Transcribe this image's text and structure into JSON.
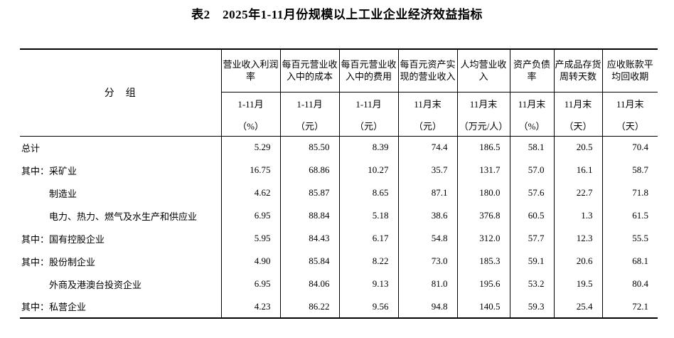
{
  "title": "表2　2025年1-11月份规模以上工业企业经济效益指标",
  "colors": {
    "text": "#000000",
    "background": "#ffffff",
    "border": "#000000"
  },
  "table": {
    "group_header": "分　组",
    "columns": [
      {
        "name": "营业收入利润率",
        "period": "1-11月",
        "unit": "（%）"
      },
      {
        "name": "每百元营业收入中的成本",
        "period": "1-11月",
        "unit": "（元）"
      },
      {
        "name": "每百元营业收入中的费用",
        "period": "1-11月",
        "unit": "（元）"
      },
      {
        "name": "每百元资产实现的营业收入",
        "period": "11月末",
        "unit": "（元）"
      },
      {
        "name": "人均营业收入",
        "period": "11月末",
        "unit": "（万元/人）"
      },
      {
        "name": "资产负债率",
        "period": "11月末",
        "unit": "（%）"
      },
      {
        "name": "产成品存货周转天数",
        "period": "11月末",
        "unit": "（天）"
      },
      {
        "name": "应收账款平均回收期",
        "period": "11月末",
        "unit": "（天）"
      }
    ],
    "rows": [
      {
        "prefix": "",
        "label": "总计",
        "indent": false,
        "values": [
          "5.29",
          "85.50",
          "8.39",
          "74.4",
          "186.5",
          "58.1",
          "20.5",
          "70.4"
        ]
      },
      {
        "prefix": "其中：",
        "label": "采矿业",
        "indent": false,
        "values": [
          "16.75",
          "68.86",
          "10.27",
          "35.7",
          "131.7",
          "57.0",
          "16.1",
          "58.7"
        ]
      },
      {
        "prefix": "",
        "label": "制造业",
        "indent": true,
        "values": [
          "4.62",
          "85.87",
          "8.65",
          "87.1",
          "180.0",
          "57.6",
          "22.7",
          "71.8"
        ]
      },
      {
        "prefix": "",
        "label": "电力、热力、燃气及水生产和供应业",
        "indent": true,
        "values": [
          "6.95",
          "88.84",
          "5.18",
          "38.6",
          "376.8",
          "60.5",
          "1.3",
          "61.5"
        ]
      },
      {
        "prefix": "其中：",
        "label": "国有控股企业",
        "indent": false,
        "values": [
          "5.95",
          "84.43",
          "6.17",
          "54.8",
          "312.0",
          "57.7",
          "12.3",
          "55.5"
        ]
      },
      {
        "prefix": "其中：",
        "label": "股份制企业",
        "indent": false,
        "values": [
          "4.90",
          "85.84",
          "8.22",
          "73.0",
          "185.3",
          "59.1",
          "20.6",
          "68.1"
        ]
      },
      {
        "prefix": "",
        "label": "外商及港澳台投资企业",
        "indent": true,
        "values": [
          "6.95",
          "84.06",
          "9.13",
          "81.0",
          "195.6",
          "53.2",
          "19.5",
          "80.4"
        ]
      },
      {
        "prefix": "其中：",
        "label": "私营企业",
        "indent": false,
        "values": [
          "4.23",
          "86.22",
          "9.56",
          "94.8",
          "140.5",
          "59.3",
          "25.4",
          "72.1"
        ]
      }
    ]
  }
}
